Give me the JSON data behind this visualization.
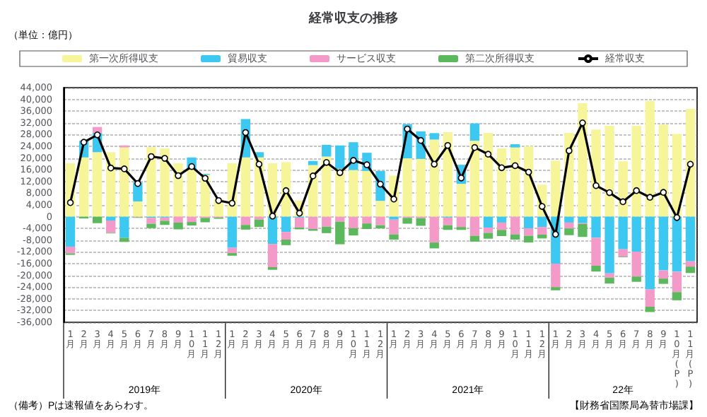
{
  "chart_data": {
    "type": "bar",
    "stacked": true,
    "title": "経常収支の推移",
    "ylabel": "（単位：億円）",
    "categories": [
      "1月",
      "2月",
      "3月",
      "4月",
      "5月",
      "6月",
      "7月",
      "8月",
      "9月",
      "10月",
      "11月",
      "12月",
      "1月",
      "2月",
      "3月",
      "4月",
      "5月",
      "6月",
      "7月",
      "8月",
      "9月",
      "10月",
      "11月",
      "12月",
      "1月",
      "2月",
      "3月",
      "4月",
      "5月",
      "6月",
      "7月",
      "8月",
      "9月",
      "10月",
      "11月",
      "12月",
      "1月",
      "2月",
      "3月",
      "4月",
      "5月",
      "6月",
      "7月",
      "8月",
      "9月",
      "10月(P)",
      "11月(P)"
    ],
    "series": [
      {
        "name": "第一次所得収支",
        "color": "#f7f59a",
        "values": [
          18200,
          20200,
          22000,
          22000,
          23600,
          5200,
          23700,
          23300,
          18200,
          16200,
          14300,
          6000,
          18200,
          20200,
          20200,
          18300,
          18600,
          5500,
          17600,
          20500,
          16300,
          15900,
          15600,
          5400,
          14000,
          19900,
          19700,
          26300,
          28800,
          11200,
          25900,
          28600,
          23300,
          23600,
          24000,
          10900,
          19100,
          28600,
          38700,
          29700,
          31000,
          18900,
          31000,
          39400,
          31400,
          28200,
          36800
        ]
      },
      {
        "name": "貿易収支",
        "color": "#3cc8f0",
        "values": [
          -10200,
          5700,
          6600,
          -1300,
          -7200,
          6500,
          -400,
          -300,
          null,
          4000,
          300,
          null,
          -10600,
          13100,
          1800,
          -9300,
          -5200,
          -300,
          1400,
          4000,
          8000,
          9500,
          6200,
          10200,
          -1000,
          11700,
          9400,
          2200,
          -300,
          6500,
          5900,
          -3700,
          -2000,
          1100,
          -4000,
          -3500,
          -16000,
          -2000,
          -2200,
          -7200,
          -19300,
          -11100,
          -11900,
          -24800,
          -18300,
          -18800,
          -15200
        ]
      },
      {
        "name": "サービス収支",
        "color": "#f49ac8",
        "values": [
          -2300,
          0,
          2000,
          -4200,
          700,
          -200,
          -2000,
          -1100,
          -2000,
          -1800,
          -400,
          -300,
          -1800,
          -2800,
          -1000,
          -7900,
          -2600,
          -3400,
          -4200,
          -3400,
          -1700,
          -3900,
          -2300,
          -2900,
          -5000,
          -400,
          -500,
          -8800,
          -2600,
          -3500,
          -6500,
          -1800,
          -2500,
          -6000,
          -2500,
          -2600,
          -8000,
          -2000,
          -300,
          -9500,
          -1500,
          -2500,
          -8500,
          -5900,
          -2800,
          -6900,
          -1800
        ]
      },
      {
        "name": "第二次所得収支",
        "color": "#5cb85c",
        "values": [
          -500,
          -600,
          -2200,
          -200,
          -1400,
          -200,
          -1500,
          -1400,
          -2300,
          -1200,
          -1500,
          -400,
          -900,
          -1600,
          -2500,
          -900,
          -1900,
          -600,
          -600,
          -2200,
          -7700,
          -2500,
          -1900,
          -1100,
          -1800,
          -2000,
          -2600,
          -2000,
          -1600,
          -1000,
          -2000,
          -2000,
          -2100,
          -1800,
          -2300,
          -1300,
          -1100,
          -2300,
          -4400,
          -2000,
          -2000,
          -200,
          -1800,
          -1800,
          -1800,
          -2800,
          -2200
        ]
      },
      {
        "name": "経常収支",
        "type": "line",
        "color": "#000000",
        "marker": "circle",
        "values": [
          4800,
          25400,
          27900,
          16600,
          16300,
          11300,
          20500,
          19900,
          14000,
          17100,
          13100,
          5500,
          4600,
          28700,
          17900,
          200,
          8900,
          1200,
          13900,
          18500,
          15000,
          19200,
          17700,
          11100,
          6000,
          29900,
          26000,
          17900,
          24300,
          13200,
          23600,
          21300,
          16700,
          17400,
          15200,
          3500,
          -6000,
          22500,
          32000,
          10600,
          8200,
          5100,
          8900,
          6600,
          8300,
          -300,
          17900
        ]
      }
    ],
    "ylim": [
      -36000,
      44000
    ],
    "yticks": [
      {
        "value": -36000,
        "label": "-36,000"
      },
      {
        "value": -32000,
        "label": "-32,000"
      },
      {
        "value": -28000,
        "label": "-28,000"
      },
      {
        "value": -24000,
        "label": "-24,000"
      },
      {
        "value": -20000,
        "label": "-20,000"
      },
      {
        "value": -16000,
        "label": "-16,000"
      },
      {
        "value": -12000,
        "label": "-12,000"
      },
      {
        "value": -8000,
        "label": "-8,000"
      },
      {
        "value": -4000,
        "label": "-4,000"
      },
      0,
      {
        "value": 4000,
        "label": "4,000"
      },
      {
        "value": 8000,
        "label": "8,000"
      },
      {
        "value": 12000,
        "label": "12,000"
      },
      {
        "value": 16000,
        "label": "16,000"
      },
      {
        "value": 20000,
        "label": "20,000"
      },
      {
        "value": 24000,
        "label": "24,000"
      },
      {
        "value": 28000,
        "label": "28,000"
      },
      {
        "value": 32000,
        "label": "32,000"
      },
      {
        "value": 36000,
        "label": "36,000"
      },
      {
        "value": 40000,
        "label": "40,000"
      },
      {
        "value": 44000,
        "label": "44,000"
      }
    ],
    "grid": "y",
    "legend": "top",
    "annotations": [
      "（備考）Pは速報値をあらわす。",
      "【財務省国際局為替市場課】",
      "2019年",
      "2020年",
      "2021年",
      "22年"
    ]
  }
}
